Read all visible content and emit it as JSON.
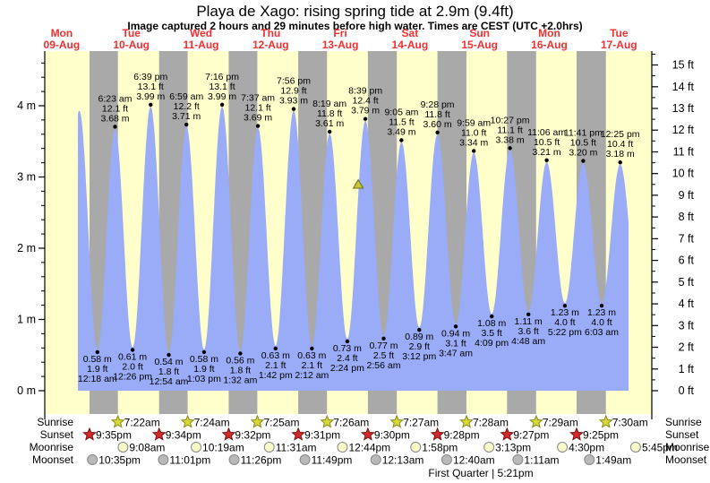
{
  "chart_data": {
    "type": "area",
    "title": "Playa de Xago: rising  spring tide at 2.9m (9.4ft)",
    "subtitle": "Image captured 2 hours and 29 minutes before high water. Times are CEST (UTC +2.0hrs)",
    "ylabel_left_unit": "m",
    "ylabel_right_unit": "ft",
    "y_axis_m": {
      "majors": [
        0,
        1,
        2,
        3,
        4
      ],
      "minor_step": 0.2,
      "minor_max": 4.6
    },
    "y_axis_ft": {
      "majors": [
        0,
        1,
        2,
        3,
        4,
        5,
        6,
        7,
        8,
        9,
        10,
        11,
        12,
        13,
        14,
        15
      ],
      "minor_step": 0.5,
      "minor_max": 15.5
    },
    "days": [
      {
        "dow": "Mon",
        "date": "09-Aug"
      },
      {
        "dow": "Tue",
        "date": "10-Aug"
      },
      {
        "dow": "Wed",
        "date": "11-Aug"
      },
      {
        "dow": "Thu",
        "date": "12-Aug"
      },
      {
        "dow": "Fri",
        "date": "13-Aug"
      },
      {
        "dow": "Sat",
        "date": "14-Aug"
      },
      {
        "dow": "Sun",
        "date": "15-Aug"
      },
      {
        "dow": "Mon",
        "date": "16-Aug"
      },
      {
        "dow": "Tue",
        "date": "17-Aug"
      }
    ],
    "clip_d": [
      0.7326,
      8.6375
    ],
    "extremes": [
      {
        "kind": "virtual",
        "d": 0.497,
        "m": 0.6
      },
      {
        "kind": "high",
        "d": 0.7528,
        "m": 3.93
      },
      {
        "kind": "low",
        "d": 1.0125,
        "m": 0.58,
        "time": "12:18 am",
        "ft": "1.9 ft",
        "mt": "0.58 m"
      },
      {
        "kind": "high",
        "d": 1.266,
        "m": 3.68,
        "time": "6:23 am",
        "ft": "12.1 ft",
        "mt": "3.68 m"
      },
      {
        "kind": "low",
        "d": 1.5181,
        "m": 0.61,
        "time": "12:26 pm",
        "ft": "2.0 ft",
        "mt": "0.61 m"
      },
      {
        "kind": "high",
        "d": 1.7771,
        "m": 3.99,
        "time": "6:39 pm",
        "ft": "13.1 ft",
        "mt": "3.99 m"
      },
      {
        "kind": "low",
        "d": 2.0375,
        "m": 0.54,
        "time": "12:54 am",
        "ft": "1.8 ft",
        "mt": "0.54 m"
      },
      {
        "kind": "high",
        "d": 2.291,
        "m": 3.71,
        "time": "6:59 am",
        "ft": "12.2 ft",
        "mt": "3.71 m"
      },
      {
        "kind": "low",
        "d": 2.5438,
        "m": 0.58,
        "time": "1:03 pm",
        "ft": "1.9 ft",
        "mt": "0.58 m"
      },
      {
        "kind": "high",
        "d": 2.8028,
        "m": 3.99,
        "time": "7:16 pm",
        "ft": "13.1 ft",
        "mt": "3.99 m"
      },
      {
        "kind": "low",
        "d": 3.0639,
        "m": 0.56,
        "time": "1:32 am",
        "ft": "1.8 ft",
        "mt": "0.56 m"
      },
      {
        "kind": "high",
        "d": 3.3174,
        "m": 3.69,
        "time": "7:37 am",
        "ft": "12.1 ft",
        "mt": "3.69 m"
      },
      {
        "kind": "low",
        "d": 3.5708,
        "m": 0.63,
        "time": "1:42 pm",
        "ft": "2.1 ft",
        "mt": "0.63 m"
      },
      {
        "kind": "high",
        "d": 3.8306,
        "m": 3.93,
        "time": "7:56 pm",
        "ft": "12.9 ft",
        "mt": "3.93 m"
      },
      {
        "kind": "low",
        "d": 4.0917,
        "m": 0.63,
        "time": "2:12 am",
        "ft": "2.1 ft",
        "mt": "0.63 m"
      },
      {
        "kind": "high",
        "d": 4.3465,
        "m": 3.61,
        "time": "8:19 am",
        "ft": "11.8 ft",
        "mt": "3.61 m"
      },
      {
        "kind": "low",
        "d": 4.6,
        "m": 0.73,
        "time": "2:24 pm",
        "ft": "2.4 ft",
        "mt": "0.73 m"
      },
      {
        "kind": "high",
        "d": 4.8604,
        "m": 3.79,
        "time": "8:39 pm",
        "ft": "12.4 ft",
        "mt": "3.79 m"
      },
      {
        "kind": "low",
        "d": 5.1222,
        "m": 0.77,
        "time": "2:56 am",
        "ft": "2.5 ft",
        "mt": "0.77 m"
      },
      {
        "kind": "high",
        "d": 5.3785,
        "m": 3.49,
        "time": "9:05 am",
        "ft": "11.5 ft",
        "mt": "3.49 m"
      },
      {
        "kind": "low",
        "d": 5.6333,
        "m": 0.89,
        "time": "3:12 pm",
        "ft": "2.9 ft",
        "mt": "0.89 m"
      },
      {
        "kind": "high",
        "d": 5.8944,
        "m": 3.6,
        "time": "9:28 pm",
        "ft": "11.8 ft",
        "mt": "3.60 m"
      },
      {
        "kind": "low",
        "d": 6.1576,
        "m": 0.94,
        "time": "3:47 am",
        "ft": "3.1 ft",
        "mt": "0.94 m"
      },
      {
        "kind": "high",
        "d": 6.416,
        "m": 3.34,
        "time": "9:59 am",
        "ft": "11.0 ft",
        "mt": "3.34 m"
      },
      {
        "kind": "low",
        "d": 6.6729,
        "m": 1.08,
        "time": "4:09 pm",
        "ft": "3.5 ft",
        "mt": "1.08 m"
      },
      {
        "kind": "high",
        "d": 6.9354,
        "m": 3.38,
        "time": "10:27 pm",
        "ft": "11.1 ft",
        "mt": "3.38 m"
      },
      {
        "kind": "low",
        "d": 7.2,
        "m": 1.11,
        "time": "4:48 am",
        "ft": "3.6 ft",
        "mt": "1.11 m"
      },
      {
        "kind": "high",
        "d": 7.4625,
        "m": 3.21,
        "time": "11:06 am",
        "ft": "10.5 ft",
        "mt": "3.21 m"
      },
      {
        "kind": "low",
        "d": 7.7236,
        "m": 1.23,
        "time": "5:22 pm",
        "ft": "4.0 ft",
        "mt": "1.23 m"
      },
      {
        "kind": "high",
        "d": 7.9868,
        "m": 3.2,
        "time": "11:41 pm",
        "ft": "10.5 ft",
        "mt": "3.20 m"
      },
      {
        "kind": "low",
        "d": 8.2521,
        "m": 1.23,
        "time": "6:03 am",
        "ft": "4.0 ft",
        "mt": "1.23 m"
      },
      {
        "kind": "high",
        "d": 8.5174,
        "m": 3.18,
        "time": "12:25 pm",
        "ft": "10.4 ft",
        "mt": "3.18 m"
      },
      {
        "kind": "virtual",
        "d": 8.78,
        "m": 1.3
      }
    ],
    "now_marker": {
      "d": 4.757,
      "m": 2.9
    },
    "astro": {
      "sunrise": {
        "label": "Sunrise",
        "entries": [
          {
            "time": "7:22am",
            "d": 1.3069
          },
          {
            "time": "7:24am",
            "d": 2.3083
          },
          {
            "time": "7:25am",
            "d": 3.309
          },
          {
            "time": "7:26am",
            "d": 4.3097
          },
          {
            "time": "7:27am",
            "d": 5.3104
          },
          {
            "time": "7:28am",
            "d": 6.3111
          },
          {
            "time": "7:29am",
            "d": 7.3118
          },
          {
            "time": "7:30am",
            "d": 8.3125
          }
        ]
      },
      "sunset": {
        "label": "Sunset",
        "entries": [
          {
            "time": "9:35pm",
            "d": 0.8993
          },
          {
            "time": "9:34pm",
            "d": 1.8986
          },
          {
            "time": "9:32pm",
            "d": 2.8972
          },
          {
            "time": "9:31pm",
            "d": 3.8965
          },
          {
            "time": "9:30pm",
            "d": 4.8958
          },
          {
            "time": "9:28pm",
            "d": 5.8944
          },
          {
            "time": "9:27pm",
            "d": 6.8938
          },
          {
            "time": "9:25pm",
            "d": 7.8924
          }
        ]
      },
      "moonrise": {
        "label": "Moonrise",
        "entries": [
          {
            "time": "9:08am",
            "d": 1.3806
          },
          {
            "time": "10:19am",
            "d": 2.4299
          },
          {
            "time": "11:31am",
            "d": 3.4799
          },
          {
            "time": "12:44pm",
            "d": 4.5306
          },
          {
            "time": "1:58pm",
            "d": 5.5819
          },
          {
            "time": "3:13pm",
            "d": 6.634
          },
          {
            "time": "4:30pm",
            "d": 7.6875
          },
          {
            "time": "5:45pm",
            "d": 8.7396
          }
        ]
      },
      "moonset": {
        "label": "Moonset",
        "entries": [
          {
            "time": "10:35pm",
            "d": 0.941
          },
          {
            "time": "11:01pm",
            "d": 1.959
          },
          {
            "time": "11:26pm",
            "d": 2.9764
          },
          {
            "time": "11:49pm",
            "d": 3.9924
          },
          {
            "time": "12:13am",
            "d": 5.009
          },
          {
            "time": "12:40am",
            "d": 6.0278
          },
          {
            "time": "1:11am",
            "d": 7.0493
          },
          {
            "time": "1:49am",
            "d": 8.0757
          }
        ]
      },
      "moon_phase": "First Quarter | 5:21pm"
    },
    "colors": {
      "day_bg": "#ffffcc",
      "night_bg": "#a9a9a9",
      "tide_fill": "#9aabf7",
      "date_red": "#f23030",
      "sunrise_star": "#d8d832",
      "sunrise_star_edge": "#8a8a20",
      "sunset_star": "#d42a2a",
      "sunset_star_edge": "#7a1010",
      "moonrise_fill": "#f8f8c8",
      "moonset_fill": "#b9b9b9",
      "moon_edge": "#888888",
      "marker_fill": "#c8c832",
      "marker_edge": "#6a6a20",
      "axis": "#000000"
    }
  }
}
